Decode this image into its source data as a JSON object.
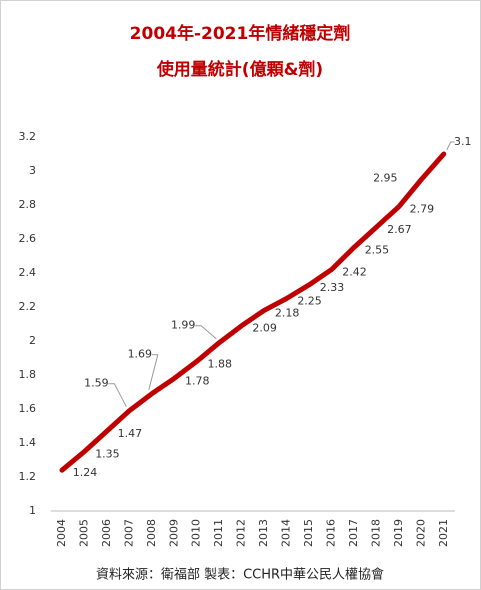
{
  "chart_data": {
    "type": "line",
    "title": "2004年-2021年情緒穩定劑",
    "subtitle": "使用量統計(億顆&劑)",
    "source": "資料來源：衛福部  製表：CCHR中華公民人權協會",
    "categories": [
      "2004",
      "2005",
      "2006",
      "2007",
      "2008",
      "2009",
      "2010",
      "2011",
      "2012",
      "2013",
      "2014",
      "2015",
      "2016",
      "2017",
      "2018",
      "2019",
      "2020",
      "2021"
    ],
    "values": [
      1.24,
      1.35,
      1.47,
      1.59,
      1.69,
      1.78,
      1.88,
      1.99,
      2.09,
      2.18,
      2.25,
      2.33,
      2.42,
      2.55,
      2.67,
      2.79,
      2.95,
      3.1
    ],
    "color": "#c00000",
    "ylim": [
      1,
      3.2
    ],
    "yticks": [
      1,
      1.2,
      1.4,
      1.6,
      1.8,
      2,
      2.2,
      2.4,
      2.6,
      2.8,
      3,
      3.2
    ],
    "grid": false
  }
}
